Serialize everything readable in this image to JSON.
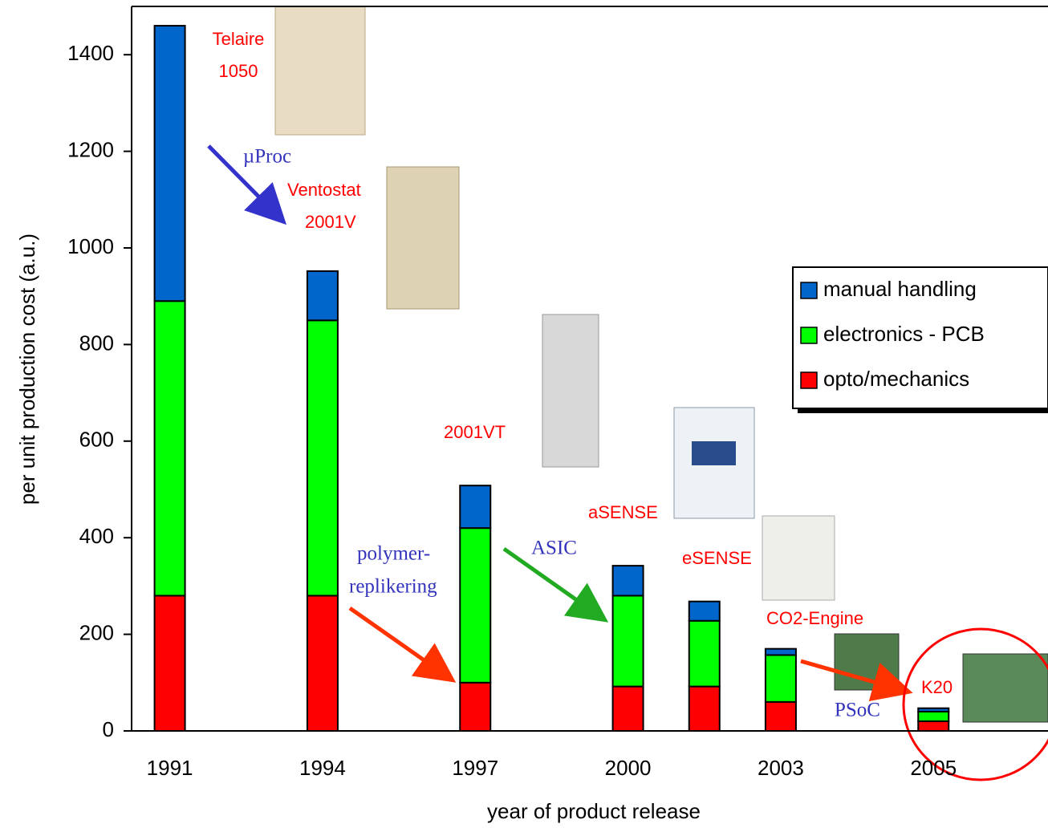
{
  "chart_data": {
    "type": "stacked-bar",
    "y_label": "per unit production cost (a.u.)",
    "x_label": "year of product release",
    "categories": [
      "1991",
      null,
      "1994",
      null,
      "1997",
      null,
      "2000",
      null,
      "2003",
      null,
      "2005",
      null
    ],
    "series": [
      {
        "name": "opto/mechanics",
        "color": "#ff0000",
        "values": [
          280,
          null,
          280,
          null,
          100,
          null,
          92,
          92,
          60,
          null,
          20,
          null
        ]
      },
      {
        "name": "electronics - PCB",
        "color": "#00ff00",
        "values": [
          610,
          null,
          570,
          null,
          320,
          null,
          188,
          136,
          97,
          null,
          20,
          null
        ]
      },
      {
        "name": "manual handling",
        "color": "#0066cc",
        "values": [
          570,
          null,
          102,
          null,
          88,
          null,
          62,
          40,
          13,
          null,
          7,
          null
        ]
      }
    ],
    "ylim": [
      0,
      1500
    ],
    "yticks": [
      0,
      200,
      400,
      600,
      800,
      1000,
      1200,
      1400
    ],
    "legend": "right",
    "annotations": [
      {
        "lines": [
          "Telaire",
          "1050"
        ]
      },
      {
        "lines": [
          "µProc"
        ]
      },
      {
        "lines": [
          "Ventostat",
          "2001V"
        ]
      },
      {
        "lines": [
          "2001VT"
        ]
      },
      {
        "lines": [
          "aSENSE"
        ]
      },
      {
        "lines": [
          "eSENSE"
        ]
      },
      {
        "lines": [
          "CO2-Engine"
        ]
      },
      {
        "lines": [
          "K20"
        ]
      },
      {
        "lines": [
          "polymer-",
          "replikering"
        ]
      },
      {
        "lines": [
          "ASIC"
        ]
      },
      {
        "lines": [
          "PSoC"
        ]
      }
    ]
  }
}
